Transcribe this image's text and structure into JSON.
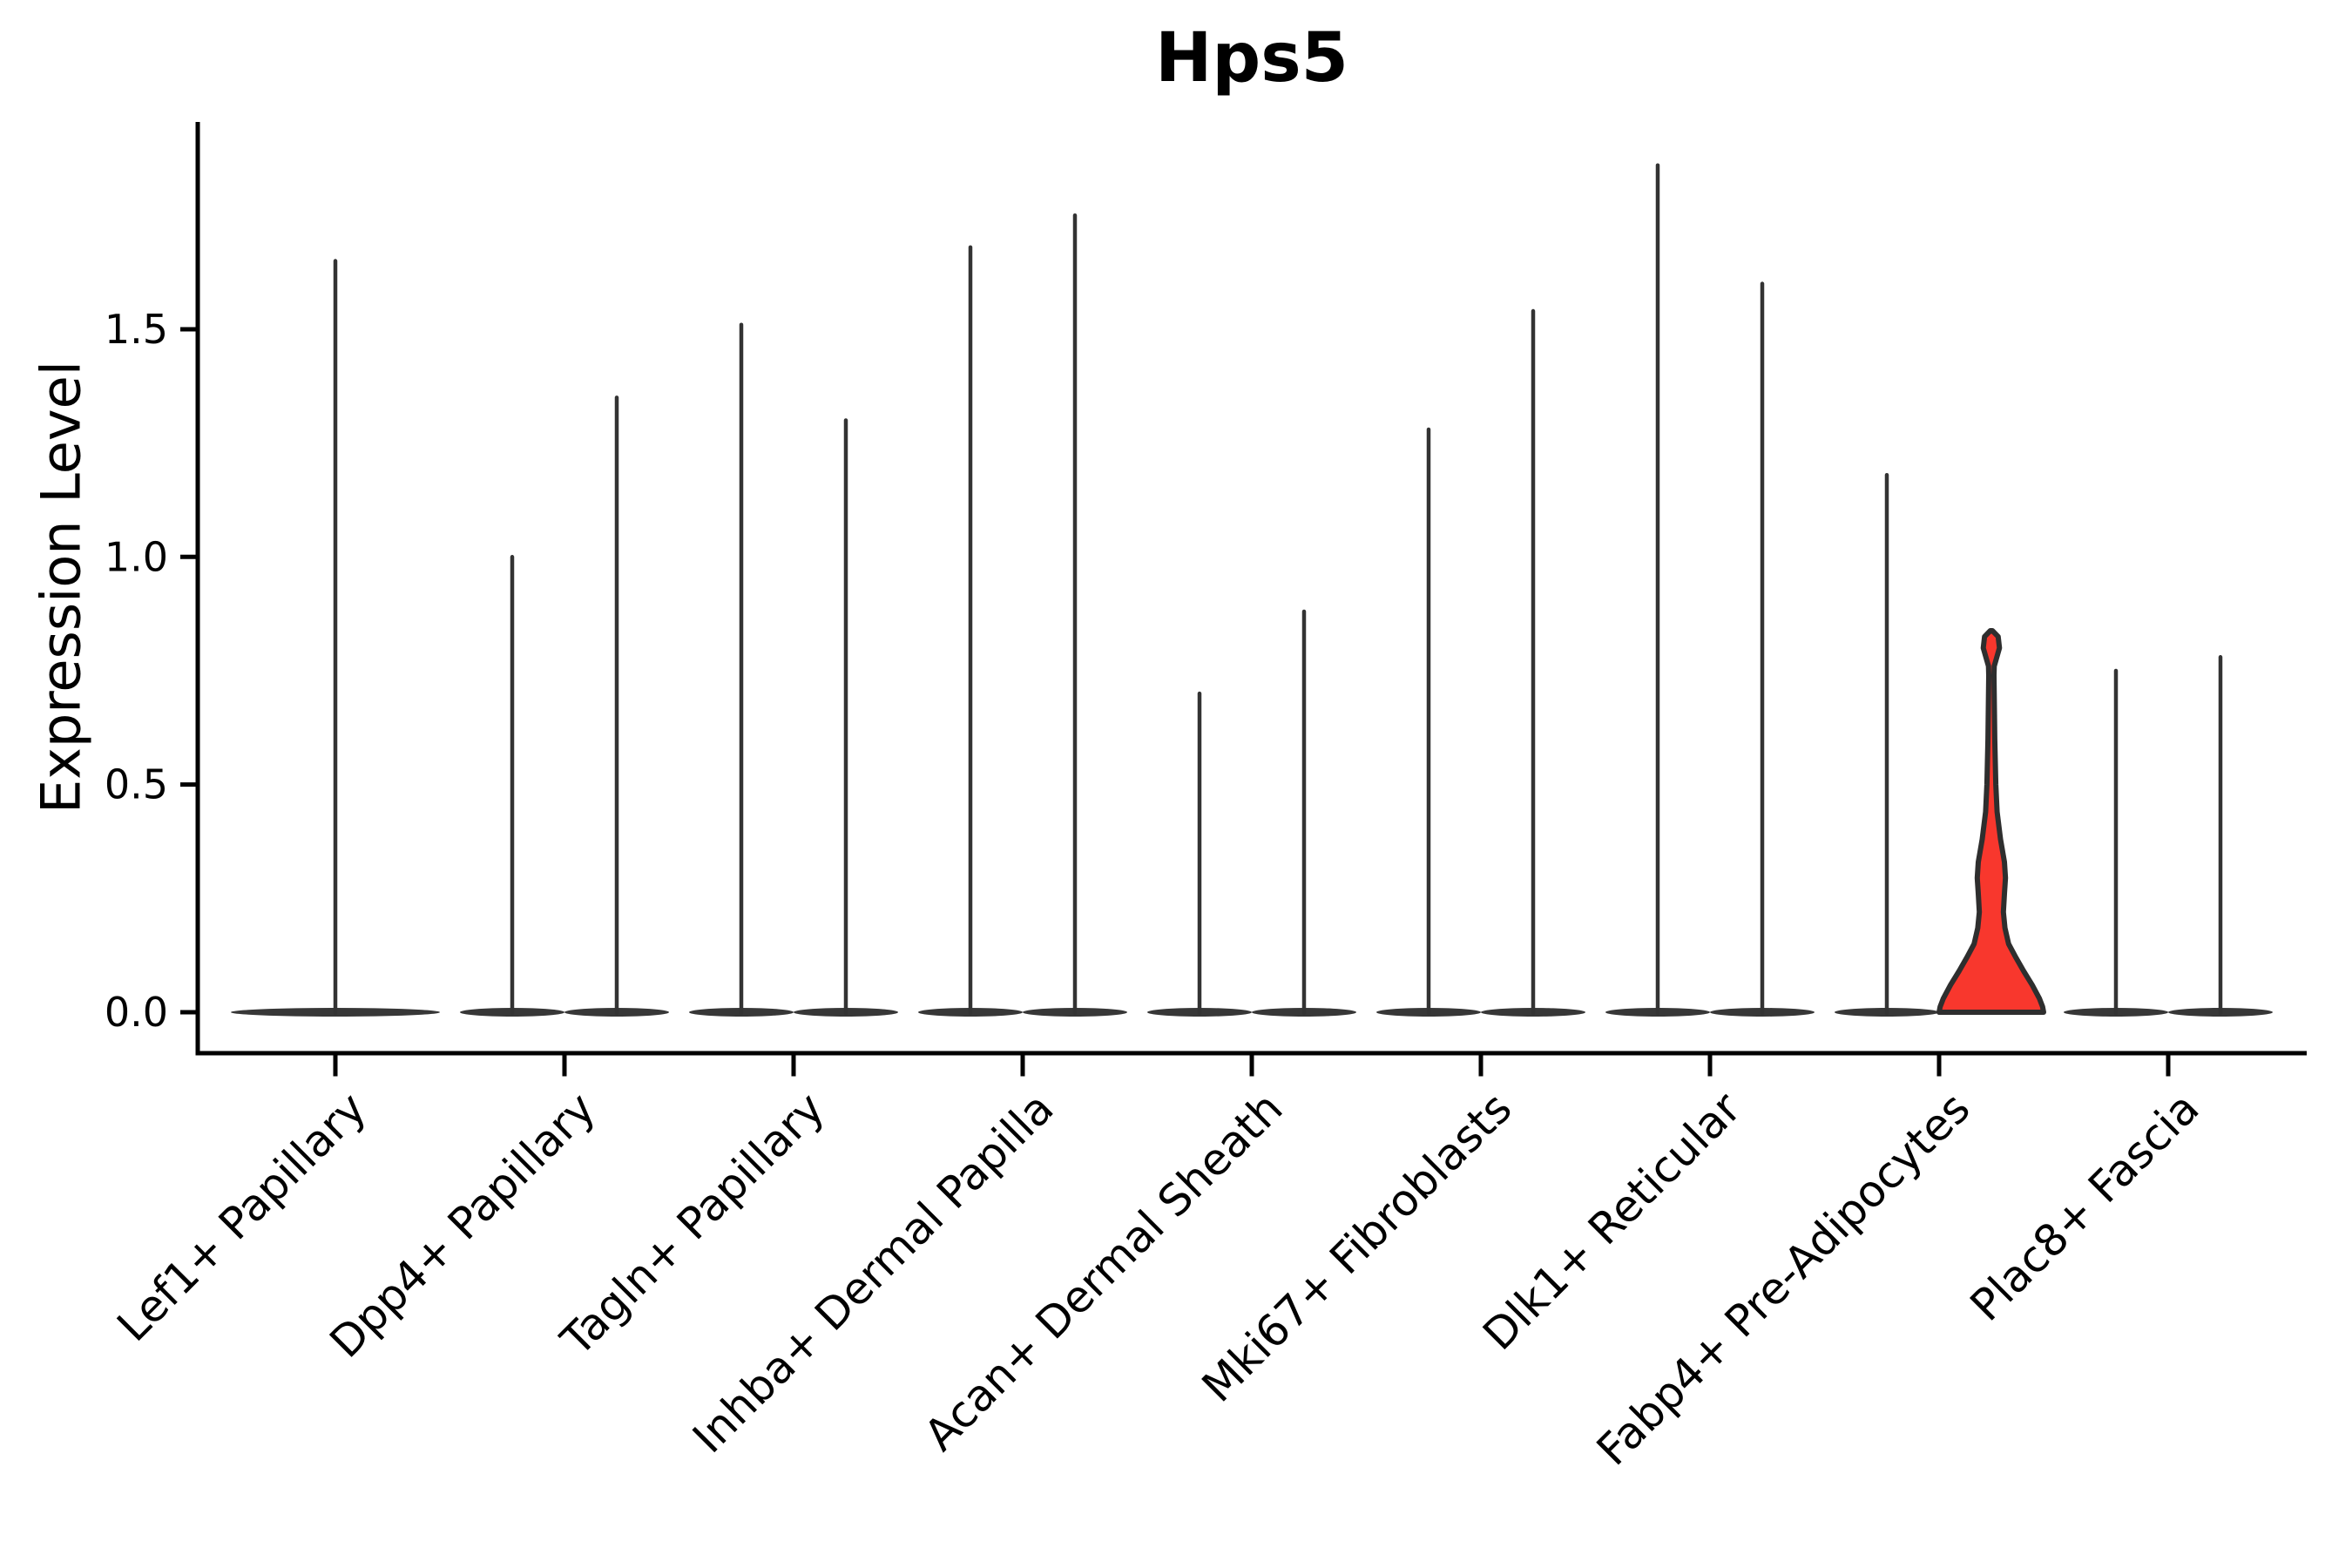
{
  "title": "Hps5",
  "y_axis": {
    "label": "Expression Level"
  },
  "chart_data": {
    "type": "violin",
    "title": "Hps5",
    "xlabel": "",
    "ylabel": "Expression Level",
    "ylim": [
      0,
      1.96
    ],
    "grid": false,
    "legend": "none",
    "yticks": [
      {
        "value": 0.0,
        "label": "0.0"
      },
      {
        "value": 0.5,
        "label": "0.5"
      },
      {
        "value": 1.0,
        "label": "1.0"
      },
      {
        "value": 1.5,
        "label": "1.5"
      }
    ],
    "categories": [
      "Lef1+ Papillary",
      "Dpp4+ Papillary",
      "Tagln+ Papillary",
      "Inhba+ Dermal Papilla",
      "Acan+ Dermal Sheath",
      "Mki67+ Fibroblasts",
      "Dlk1+ Reticular",
      "Fabp4+ Pre-Adipocytes",
      "Plac8+ Fascia"
    ],
    "violins": [
      {
        "category": "Lef1+ Papillary",
        "category_index": 0,
        "slot": "center",
        "max": 1.65,
        "highlighted": false
      },
      {
        "category": "Dpp4+ Papillary",
        "category_index": 1,
        "slot": "left",
        "max": 1.0,
        "highlighted": false
      },
      {
        "category": "Dpp4+ Papillary",
        "category_index": 1,
        "slot": "right",
        "max": 1.35,
        "highlighted": false
      },
      {
        "category": "Tagln+ Papillary",
        "category_index": 2,
        "slot": "left",
        "max": 1.51,
        "highlighted": false
      },
      {
        "category": "Tagln+ Papillary",
        "category_index": 2,
        "slot": "right",
        "max": 1.3,
        "highlighted": false
      },
      {
        "category": "Inhba+ Dermal Papilla",
        "category_index": 3,
        "slot": "left",
        "max": 1.68,
        "highlighted": false
      },
      {
        "category": "Inhba+ Dermal Papilla",
        "category_index": 3,
        "slot": "right",
        "max": 1.75,
        "highlighted": false
      },
      {
        "category": "Acan+ Dermal Sheath",
        "category_index": 4,
        "slot": "left",
        "max": 0.7,
        "highlighted": false
      },
      {
        "category": "Acan+ Dermal Sheath",
        "category_index": 4,
        "slot": "right",
        "max": 0.88,
        "highlighted": false
      },
      {
        "category": "Mki67+ Fibroblasts",
        "category_index": 5,
        "slot": "left",
        "max": 1.28,
        "highlighted": false
      },
      {
        "category": "Mki67+ Fibroblasts",
        "category_index": 5,
        "slot": "right",
        "max": 1.54,
        "highlighted": false
      },
      {
        "category": "Dlk1+ Reticular",
        "category_index": 6,
        "slot": "left",
        "max": 1.86,
        "highlighted": false
      },
      {
        "category": "Dlk1+ Reticular",
        "category_index": 6,
        "slot": "right",
        "max": 1.6,
        "highlighted": false
      },
      {
        "category": "Fabp4+ Pre-Adipocytes",
        "category_index": 7,
        "slot": "left",
        "max": 1.18,
        "highlighted": false
      },
      {
        "category": "Fabp4+ Pre-Adipocytes",
        "category_index": 7,
        "slot": "right",
        "max": 0.84,
        "highlighted": true
      },
      {
        "category": "Plac8+ Fascia",
        "category_index": 8,
        "slot": "left",
        "max": 0.75,
        "highlighted": false
      },
      {
        "category": "Plac8+ Fascia",
        "category_index": 8,
        "slot": "right",
        "max": 0.78,
        "highlighted": false
      }
    ],
    "highlighted_violin_profile": [
      [
        0.0,
        1.0
      ],
      [
        0.012,
        0.98
      ],
      [
        0.03,
        0.92
      ],
      [
        0.06,
        0.78
      ],
      [
        0.09,
        0.62
      ],
      [
        0.12,
        0.47
      ],
      [
        0.15,
        0.33
      ],
      [
        0.185,
        0.26
      ],
      [
        0.22,
        0.23
      ],
      [
        0.26,
        0.25
      ],
      [
        0.295,
        0.27
      ],
      [
        0.33,
        0.25
      ],
      [
        0.38,
        0.175
      ],
      [
        0.44,
        0.11
      ],
      [
        0.5,
        0.085
      ],
      [
        0.6,
        0.065
      ],
      [
        0.74,
        0.05
      ],
      [
        0.76,
        0.055
      ],
      [
        0.778,
        0.1
      ],
      [
        0.8,
        0.155
      ],
      [
        0.825,
        0.13
      ],
      [
        0.838,
        0.02
      ]
    ]
  },
  "colors": {
    "background": "#ffffff",
    "violin_line": "#333333",
    "baseline_blob": "#373737",
    "highlight_fill": "#F8372D",
    "highlight_outline": "#2E2E2E",
    "axis": "#000000",
    "text": "#000000"
  }
}
